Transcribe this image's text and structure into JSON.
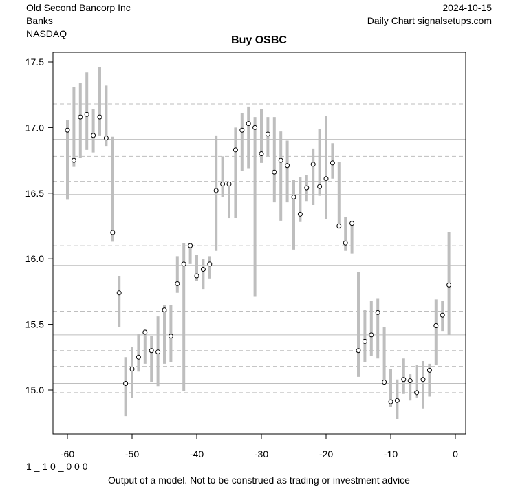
{
  "header": {
    "company": "Old Second Bancorp Inc",
    "sector": "Banks",
    "exchange": "NASDAQ",
    "date": "2024-10-15",
    "source": "Daily Chart signalsetups.com"
  },
  "footer": {
    "code": "1 _ 1 0 _ 0 0 0",
    "disclaimer": "Output of a model. Not to be construed as trading or investment advice"
  },
  "chart_data": {
    "type": "range-dot",
    "title": "Buy OSBC",
    "xlabel": "",
    "ylabel": "",
    "xlim": [
      -62.3,
      1.6
    ],
    "ylim": [
      14.67,
      17.58
    ],
    "x_ticks": [
      -60,
      -50,
      -40,
      -30,
      -20,
      -10,
      0
    ],
    "y_ticks": [
      15.0,
      15.5,
      16.0,
      16.5,
      17.0,
      17.5
    ],
    "grid": false,
    "hlines_solid": [
      16.91,
      16.49,
      15.95,
      15.42,
      15.05
    ],
    "hlines_dashed": [
      17.18,
      16.78,
      16.59,
      16.1,
      15.6,
      15.3,
      15.18,
      14.98,
      14.84
    ],
    "colors": {
      "bar": "#bebebe",
      "point": "#000000",
      "hline": "#bebebe",
      "frame": "#000000"
    },
    "points": [
      {
        "x": -60,
        "low": 16.45,
        "high": 17.06,
        "close": 16.98
      },
      {
        "x": -59,
        "low": 16.7,
        "high": 17.31,
        "close": 16.75
      },
      {
        "x": -58,
        "low": 16.77,
        "high": 17.34,
        "close": 17.08
      },
      {
        "x": -57,
        "low": 16.83,
        "high": 17.42,
        "close": 17.1
      },
      {
        "x": -56,
        "low": 16.81,
        "high": 17.14,
        "close": 16.94
      },
      {
        "x": -55,
        "low": 16.94,
        "high": 17.46,
        "close": 17.08
      },
      {
        "x": -54,
        "low": 16.86,
        "high": 17.32,
        "close": 16.92
      },
      {
        "x": -53,
        "low": 16.13,
        "high": 16.93,
        "close": 16.2
      },
      {
        "x": -52,
        "low": 15.48,
        "high": 15.87,
        "close": 15.74
      },
      {
        "x": -51,
        "low": 14.8,
        "high": 15.25,
        "close": 15.05
      },
      {
        "x": -50,
        "low": 14.94,
        "high": 15.33,
        "close": 15.16
      },
      {
        "x": -49,
        "low": 15.14,
        "high": 15.43,
        "close": 15.25
      },
      {
        "x": -48,
        "low": 15.2,
        "high": 15.46,
        "close": 15.44
      },
      {
        "x": -47,
        "low": 15.06,
        "high": 15.41,
        "close": 15.3
      },
      {
        "x": -46,
        "low": 15.03,
        "high": 15.56,
        "close": 15.29
      },
      {
        "x": -45,
        "low": 15.2,
        "high": 15.65,
        "close": 15.61
      },
      {
        "x": -44,
        "low": 15.21,
        "high": 15.65,
        "close": 15.41
      },
      {
        "x": -43,
        "low": 15.74,
        "high": 16.02,
        "close": 15.81
      },
      {
        "x": -42,
        "low": 14.99,
        "high": 16.12,
        "close": 15.96
      },
      {
        "x": -41,
        "low": 15.96,
        "high": 16.12,
        "close": 16.1
      },
      {
        "x": -40,
        "low": 15.83,
        "high": 16.03,
        "close": 15.87
      },
      {
        "x": -39,
        "low": 15.77,
        "high": 16.0,
        "close": 15.92
      },
      {
        "x": -38,
        "low": 15.85,
        "high": 16.02,
        "close": 15.96
      },
      {
        "x": -37,
        "low": 16.06,
        "high": 16.94,
        "close": 16.52
      },
      {
        "x": -36,
        "low": 16.47,
        "high": 16.78,
        "close": 16.57
      },
      {
        "x": -35,
        "low": 16.31,
        "high": 16.58,
        "close": 16.57
      },
      {
        "x": -34,
        "low": 16.31,
        "high": 17.0,
        "close": 16.83
      },
      {
        "x": -33,
        "low": 16.67,
        "high": 17.11,
        "close": 16.98
      },
      {
        "x": -32,
        "low": 16.69,
        "high": 17.16,
        "close": 17.03
      },
      {
        "x": -31,
        "low": 15.71,
        "high": 17.08,
        "close": 17.0
      },
      {
        "x": -30,
        "low": 16.73,
        "high": 17.14,
        "close": 16.8
      },
      {
        "x": -29,
        "low": 16.78,
        "high": 17.08,
        "close": 16.95
      },
      {
        "x": -28,
        "low": 16.43,
        "high": 17.08,
        "close": 16.66
      },
      {
        "x": -27,
        "low": 16.29,
        "high": 16.97,
        "close": 16.75
      },
      {
        "x": -26,
        "low": 16.43,
        "high": 16.9,
        "close": 16.71
      },
      {
        "x": -25,
        "low": 16.07,
        "high": 16.6,
        "close": 16.47
      },
      {
        "x": -24,
        "low": 16.28,
        "high": 16.62,
        "close": 16.34
      },
      {
        "x": -23,
        "low": 16.44,
        "high": 16.64,
        "close": 16.54
      },
      {
        "x": -22,
        "low": 16.41,
        "high": 16.84,
        "close": 16.72
      },
      {
        "x": -21,
        "low": 16.48,
        "high": 16.99,
        "close": 16.55
      },
      {
        "x": -20,
        "low": 16.3,
        "high": 17.09,
        "close": 16.61
      },
      {
        "x": -19,
        "low": 16.61,
        "high": 16.88,
        "close": 16.73
      },
      {
        "x": -18,
        "low": 16.23,
        "high": 16.74,
        "close": 16.25
      },
      {
        "x": -17,
        "low": 16.06,
        "high": 16.32,
        "close": 16.12
      },
      {
        "x": -16,
        "low": 16.04,
        "high": 16.29,
        "close": 16.27
      },
      {
        "x": -15,
        "low": 15.1,
        "high": 15.9,
        "close": 15.3
      },
      {
        "x": -14,
        "low": 15.21,
        "high": 15.61,
        "close": 15.37
      },
      {
        "x": -13,
        "low": 15.26,
        "high": 15.68,
        "close": 15.42
      },
      {
        "x": -12,
        "low": 15.24,
        "high": 15.7,
        "close": 15.59
      },
      {
        "x": -11,
        "low": 15.04,
        "high": 15.48,
        "close": 15.06
      },
      {
        "x": -10,
        "low": 14.87,
        "high": 15.16,
        "close": 14.91
      },
      {
        "x": -9,
        "low": 14.78,
        "high": 15.08,
        "close": 14.92
      },
      {
        "x": -8,
        "low": 14.97,
        "high": 15.24,
        "close": 15.08
      },
      {
        "x": -7,
        "low": 14.92,
        "high": 15.12,
        "close": 15.07
      },
      {
        "x": -6,
        "low": 14.94,
        "high": 15.19,
        "close": 14.98
      },
      {
        "x": -5,
        "low": 14.86,
        "high": 15.22,
        "close": 15.08
      },
      {
        "x": -4,
        "low": 14.95,
        "high": 15.2,
        "close": 15.15
      },
      {
        "x": -3,
        "low": 15.19,
        "high": 15.69,
        "close": 15.49
      },
      {
        "x": -2,
        "low": 15.45,
        "high": 15.68,
        "close": 15.57
      },
      {
        "x": -1,
        "low": 15.42,
        "high": 16.2,
        "close": 15.8
      }
    ]
  }
}
